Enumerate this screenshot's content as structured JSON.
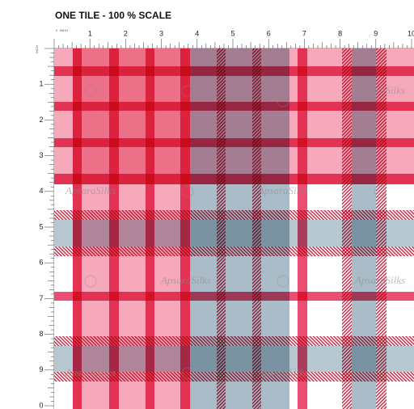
{
  "header": {
    "title": "ONE TILE - 100 % SCALE"
  },
  "ruler": {
    "unit": "INCH",
    "top_origin": "0",
    "top": [
      "1",
      "2",
      "3",
      "4",
      "5",
      "6",
      "7",
      "8",
      "9",
      "10"
    ],
    "left": [
      "1",
      "2",
      "3",
      "4",
      "5",
      "6",
      "7",
      "8",
      "9",
      "0"
    ]
  },
  "watermark": {
    "text": "ApsaraSilks"
  }
}
